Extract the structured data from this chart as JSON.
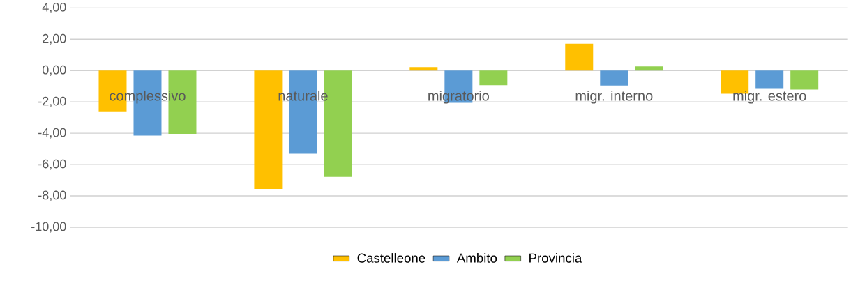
{
  "chart_data": {
    "type": "bar",
    "categories": [
      "complessivo",
      "naturale",
      "migratorio",
      "migr. interno",
      "migr. estero"
    ],
    "series": [
      {
        "name": "Castelleone",
        "color": "#ffc000",
        "values": [
          -2.6,
          -7.55,
          0.22,
          1.71,
          -1.48
        ]
      },
      {
        "name": "Ambito",
        "color": "#5b9bd5",
        "values": [
          -4.15,
          -5.31,
          -2.06,
          -0.96,
          -1.12
        ]
      },
      {
        "name": "Provincia",
        "color": "#92d050",
        "values": [
          -4.04,
          -6.79,
          -0.93,
          0.27,
          -1.21
        ]
      }
    ],
    "ylim": [
      -10,
      4
    ],
    "yticks": [
      {
        "value": -10,
        "label": "-10,00"
      },
      {
        "value": -8,
        "label": "-8,00"
      },
      {
        "value": -6,
        "label": "-6,00"
      },
      {
        "value": -4,
        "label": "-4,00"
      },
      {
        "value": -2,
        "label": "-2,00"
      },
      {
        "value": 0,
        "label": "0,00"
      },
      {
        "value": 2,
        "label": "2,00"
      },
      {
        "value": 4,
        "label": "4,00"
      }
    ],
    "grid": "y",
    "legend": "bottom"
  }
}
